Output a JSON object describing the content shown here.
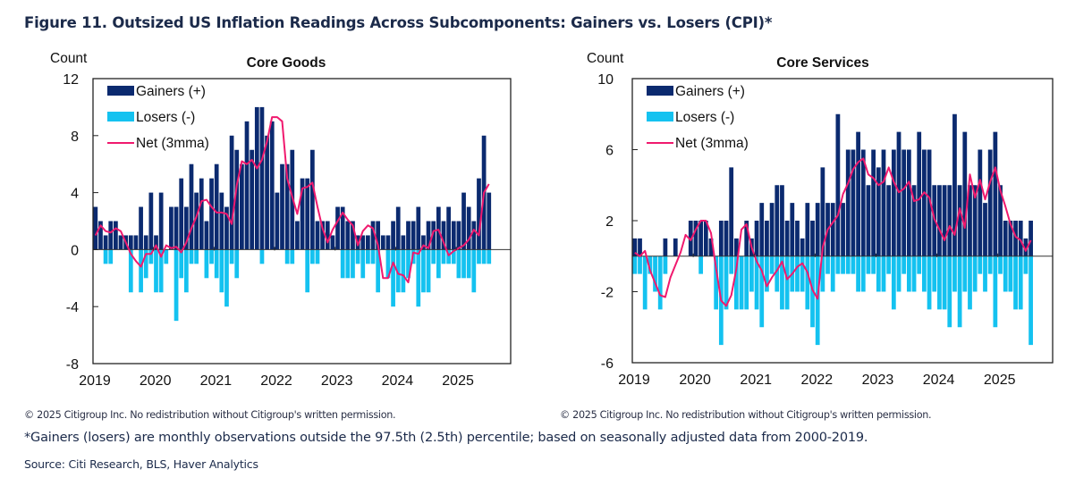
{
  "figure": {
    "title": "Figure 11. Outsized US Inflation Readings Across Subcomponents: Gainers vs. Losers (CPI)*",
    "copyright": "© 2025 Citigroup Inc. No redistribution without Citigroup's written permission.",
    "footnote": "*Gainers (losers) are monthly observations outside the 97.5th (2.5th) percentile; based on seasonally adjusted data from 2000-2019.",
    "source": "Source: Citi Research, BLS, Haver Analytics"
  },
  "colors": {
    "gainers": "#0b2a6f",
    "losers": "#14c2f0",
    "net": "#f0196e"
  },
  "chart_data": [
    {
      "type": "bar",
      "title": "Core Goods",
      "ylabel": "Count",
      "xlabel": "",
      "ylim": [
        -8,
        12
      ],
      "yticks": [
        12,
        8,
        4,
        0,
        -4,
        -8
      ],
      "xticks": [
        "2019",
        "2020",
        "2021",
        "2022",
        "2023",
        "2024",
        "2025"
      ],
      "x_start": "2019-01",
      "frequency": "monthly",
      "legend": [
        "Gainers (+)",
        "Losers (-)",
        "Net (3mma)"
      ],
      "legend_position": "top-left",
      "series": [
        {
          "name": "Gainers (+)",
          "values": [
            3,
            2,
            1,
            2,
            2,
            1,
            1,
            1,
            1,
            3,
            1,
            4,
            1,
            4,
            0,
            3,
            3,
            5,
            3,
            6,
            4,
            5,
            2,
            5,
            6,
            4,
            3,
            8,
            7,
            6,
            9,
            7,
            10,
            10,
            8,
            9,
            4,
            6,
            6,
            7,
            2,
            5,
            5,
            7,
            2,
            2,
            2,
            1,
            3,
            3,
            2,
            2,
            1,
            1,
            1,
            2,
            2,
            1,
            1,
            2,
            3,
            1,
            2,
            2,
            3,
            1,
            2,
            2,
            3,
            2,
            3,
            2,
            2,
            4,
            3,
            2,
            5,
            8,
            4
          ]
        },
        {
          "name": "Losers (-)",
          "values": [
            0,
            0,
            -1,
            -1,
            0,
            0,
            0,
            -3,
            0,
            -3,
            -2,
            -1,
            -3,
            -3,
            -1,
            0,
            -5,
            -2,
            -3,
            -1,
            -1,
            0,
            -2,
            -1,
            -2,
            -3,
            -4,
            -1,
            -2,
            0,
            0,
            0,
            0,
            -1,
            0,
            0,
            0,
            0,
            -1,
            -1,
            0,
            0,
            -3,
            -1,
            -1,
            0,
            0,
            0,
            0,
            -2,
            -2,
            -2,
            -1,
            -2,
            -1,
            -1,
            -3,
            0,
            -2,
            -4,
            -3,
            -3,
            -2,
            -1,
            -4,
            -3,
            -3,
            -1,
            -2,
            -1,
            -1,
            -1,
            -2,
            -2,
            -2,
            -3,
            -1,
            -1,
            -1
          ]
        },
        {
          "name": "Net (3mma)",
          "values": [
            1.0,
            1.7,
            1.3,
            1.2,
            1.5,
            1.3,
            0.5,
            -0.3,
            -0.8,
            -1.2,
            -0.3,
            -0.3,
            0.3,
            -0.5,
            0.3,
            0.1,
            0.2,
            -0.2,
            0.5,
            1.5,
            2.3,
            3.4,
            3.5,
            3.0,
            2.6,
            2.6,
            2.5,
            1.8,
            4.5,
            6.2,
            6.0,
            6.3,
            5.7,
            6.3,
            7.6,
            9.3,
            9.3,
            9.0,
            5.0,
            3.7,
            2.5,
            4.3,
            4.4,
            4.7,
            3.0,
            1.5,
            0.5,
            1.4,
            2.0,
            2.6,
            2.1,
            1.7,
            0.3,
            1.3,
            1.7,
            1.5,
            0.3,
            -2.0,
            -2.0,
            -0.9,
            -1.7,
            -1.8,
            -2.3,
            -0.2,
            -0.3,
            0.3,
            0.1,
            1.3,
            1.4,
            0.5,
            -0.4,
            -0.1,
            0.1,
            0.3,
            0.7,
            1.4,
            1.0,
            4.0,
            4.6
          ]
        }
      ]
    },
    {
      "type": "bar",
      "title": "Core Services",
      "ylabel": "Count",
      "xlabel": "",
      "ylim": [
        -6,
        10
      ],
      "yticks": [
        10,
        6,
        2,
        -2,
        -6
      ],
      "xticks": [
        "2019",
        "2020",
        "2021",
        "2022",
        "2023",
        "2024",
        "2025"
      ],
      "x_start": "2019-01",
      "frequency": "monthly",
      "legend": [
        "Gainers (+)",
        "Losers (-)",
        "Net (3mma)"
      ],
      "legend_position": "top-left",
      "series": [
        {
          "name": "Gainers (+)",
          "values": [
            1,
            1,
            0,
            0,
            0,
            0,
            1,
            0,
            1,
            0,
            0,
            2,
            2,
            2,
            2,
            1,
            0,
            2,
            2,
            5,
            1,
            0,
            2,
            1,
            2,
            3,
            2,
            3,
            4,
            4,
            2,
            3,
            2,
            1,
            3,
            2,
            3,
            5,
            3,
            3,
            8,
            3,
            6,
            6,
            7,
            6,
            4,
            6,
            5,
            6,
            4,
            6,
            7,
            6,
            6,
            4,
            7,
            6,
            6,
            4,
            4,
            4,
            4,
            8,
            4,
            7,
            4,
            4,
            6,
            3,
            6,
            7,
            4,
            2,
            2,
            2,
            2,
            1,
            2
          ]
        },
        {
          "name": "Losers (-)",
          "values": [
            -1,
            -1,
            -3,
            -1,
            -2,
            -3,
            -1,
            0,
            0,
            0,
            0,
            0,
            0,
            -1,
            0,
            0,
            -3,
            -5,
            -3,
            -1,
            -3,
            -3,
            -3,
            -2,
            -3,
            -4,
            -2,
            -1,
            -2,
            -3,
            -3,
            -2,
            -2,
            -2,
            -3,
            -4,
            -5,
            -2,
            -1,
            -2,
            -1,
            -1,
            -1,
            -1,
            -2,
            -2,
            -1,
            -1,
            -2,
            -2,
            -1,
            -3,
            -2,
            -1,
            -2,
            -2,
            -1,
            -2,
            -3,
            -2,
            -3,
            -3,
            -4,
            -2,
            -4,
            -2,
            -3,
            -2,
            -1,
            -2,
            -1,
            -4,
            -1,
            -2,
            -2,
            -3,
            -3,
            -1,
            -5
          ]
        },
        {
          "name": "Net (3mma)",
          "values": [
            0.2,
            0.0,
            0.3,
            -0.8,
            -1.5,
            -2.2,
            -2.3,
            -1.2,
            -0.5,
            0.2,
            1.2,
            0.9,
            1.5,
            2.0,
            2.0,
            1.3,
            -0.7,
            -2.5,
            -2.8,
            -2.2,
            -0.7,
            1.5,
            1.8,
            0.5,
            -0.3,
            -0.8,
            -1.7,
            -1.2,
            -0.8,
            -0.3,
            -1.3,
            -1.0,
            -0.6,
            -0.4,
            -0.9,
            -1.9,
            -2.4,
            0.5,
            1.5,
            1.9,
            2.3,
            3.5,
            4.1,
            4.9,
            5.3,
            5.5,
            4.6,
            4.4,
            4.0,
            4.2,
            5.0,
            4.2,
            3.6,
            3.8,
            4.2,
            3.1,
            3.2,
            3.6,
            3.3,
            2.1,
            1.5,
            0.9,
            1.7,
            1.2,
            2.7,
            1.6,
            4.6,
            3.3,
            4.3,
            3.2,
            4.2,
            5.0,
            3.7,
            2.8,
            1.8,
            1.1,
            0.9,
            0.3,
            0.9
          ]
        }
      ]
    }
  ]
}
